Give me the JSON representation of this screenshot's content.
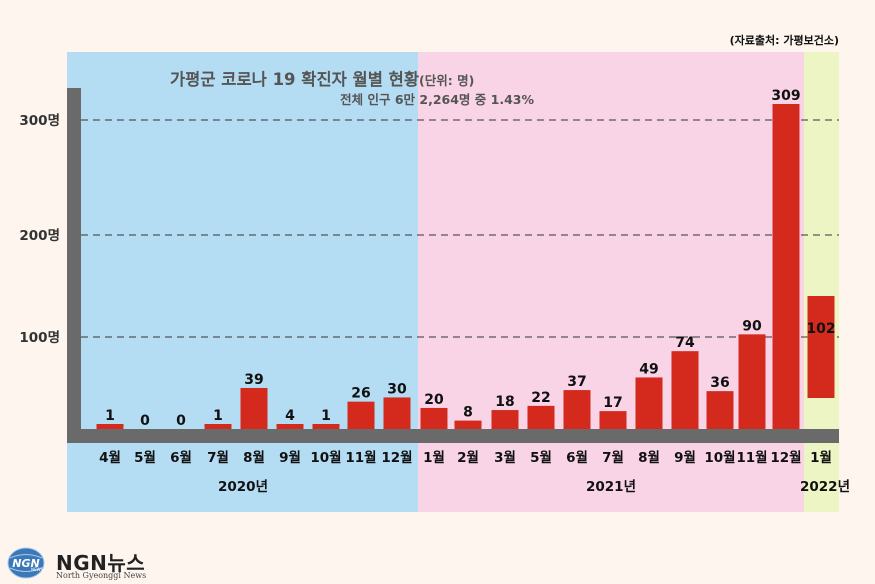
{
  "source_note": "(자료출처: 가평보건소)",
  "logo": {
    "mark": "NGN",
    "mark_small": "NEWS",
    "name": "NGN뉴스",
    "subtitle": "North Gyeonggi News"
  },
  "colors": {
    "background": "#fdf5ee",
    "band_2020": "#b4dcf3",
    "band_2021": "#f9d4e6",
    "band_2022": "#eef5c5",
    "bar": "#d42a1d",
    "axis": "#6a6a6a"
  },
  "chart_data": {
    "type": "bar",
    "title": "가평군 코로나 19 확진자 월별 현황",
    "title_unit": "(단위: 명)",
    "subtitle": "전체 인구 6만 2,264명 중 1.43%",
    "y_ticks": [
      {
        "value": 100,
        "label": "100명"
      },
      {
        "value": 200,
        "label": "200명"
      },
      {
        "value": 300,
        "label": "300명"
      }
    ],
    "ylim": [
      0,
      330
    ],
    "grid": "dashed",
    "categories": [
      "4월",
      "5월",
      "6월",
      "7월",
      "8월",
      "9월",
      "10월",
      "11월",
      "12월",
      "1월",
      "2월",
      "3월",
      "5월",
      "6월",
      "7월",
      "8월",
      "9월",
      "10월",
      "11월",
      "12월",
      "1월"
    ],
    "values": [
      1,
      0,
      0,
      1,
      39,
      4,
      1,
      26,
      30,
      20,
      8,
      18,
      22,
      37,
      17,
      49,
      74,
      36,
      90,
      309,
      102
    ],
    "groups": [
      {
        "label": "2020년",
        "start": 0,
        "end": 8
      },
      {
        "label": "2021년",
        "start": 9,
        "end": 19
      },
      {
        "label": "2022년",
        "start": 20,
        "end": 20
      }
    ]
  }
}
